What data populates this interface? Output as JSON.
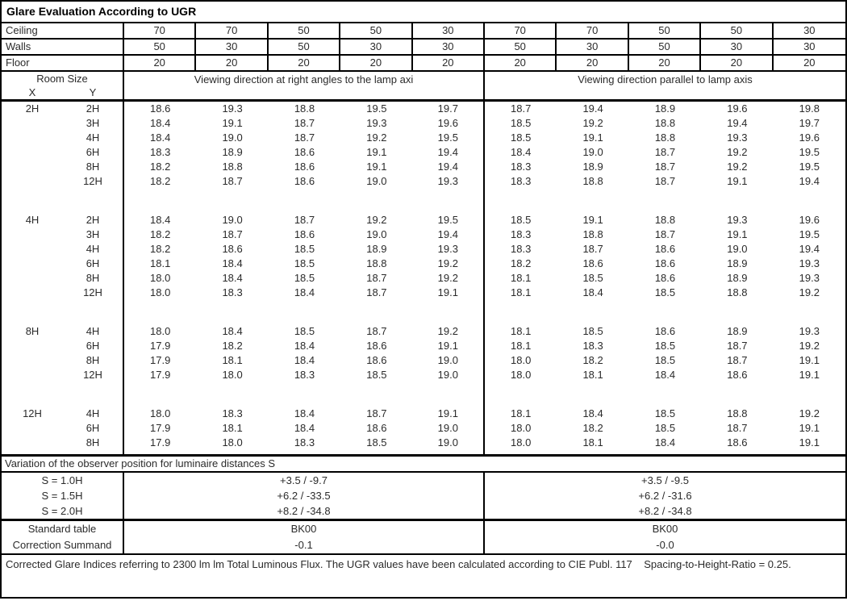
{
  "title": "Glare Evaluation According to UGR",
  "colors": {
    "border": "#000000",
    "text": "#2b2b2b",
    "background": "#ffffff"
  },
  "surface_rows": [
    {
      "label": "Ceiling",
      "values": [
        "70",
        "70",
        "50",
        "50",
        "30",
        "70",
        "70",
        "50",
        "50",
        "30"
      ]
    },
    {
      "label": "Walls",
      "values": [
        "50",
        "30",
        "50",
        "30",
        "30",
        "50",
        "30",
        "50",
        "30",
        "30"
      ]
    },
    {
      "label": "Floor",
      "values": [
        "20",
        "20",
        "20",
        "20",
        "20",
        "20",
        "20",
        "20",
        "20",
        "20"
      ]
    }
  ],
  "header": {
    "room_size": "Room Size",
    "x": "X",
    "y": "Y",
    "left_group": "Viewing direction at right angles to the lamp axi",
    "right_group": "Viewing direction parallel to lamp axis"
  },
  "groups": [
    {
      "x": "2H",
      "rows": [
        {
          "y": "2H",
          "values": [
            "18.6",
            "19.3",
            "18.8",
            "19.5",
            "19.7",
            "18.7",
            "19.4",
            "18.9",
            "19.6",
            "19.8"
          ]
        },
        {
          "y": "3H",
          "values": [
            "18.4",
            "19.1",
            "18.7",
            "19.3",
            "19.6",
            "18.5",
            "19.2",
            "18.8",
            "19.4",
            "19.7"
          ]
        },
        {
          "y": "4H",
          "values": [
            "18.4",
            "19.0",
            "18.7",
            "19.2",
            "19.5",
            "18.5",
            "19.1",
            "18.8",
            "19.3",
            "19.6"
          ]
        },
        {
          "y": "6H",
          "values": [
            "18.3",
            "18.9",
            "18.6",
            "19.1",
            "19.4",
            "18.4",
            "19.0",
            "18.7",
            "19.2",
            "19.5"
          ]
        },
        {
          "y": "8H",
          "values": [
            "18.2",
            "18.8",
            "18.6",
            "19.1",
            "19.4",
            "18.3",
            "18.9",
            "18.7",
            "19.2",
            "19.5"
          ]
        },
        {
          "y": "12H",
          "values": [
            "18.2",
            "18.7",
            "18.6",
            "19.0",
            "19.3",
            "18.3",
            "18.8",
            "18.7",
            "19.1",
            "19.4"
          ]
        }
      ]
    },
    {
      "x": "4H",
      "rows": [
        {
          "y": "2H",
          "values": [
            "18.4",
            "19.0",
            "18.7",
            "19.2",
            "19.5",
            "18.5",
            "19.1",
            "18.8",
            "19.3",
            "19.6"
          ]
        },
        {
          "y": "3H",
          "values": [
            "18.2",
            "18.7",
            "18.6",
            "19.0",
            "19.4",
            "18.3",
            "18.8",
            "18.7",
            "19.1",
            "19.5"
          ]
        },
        {
          "y": "4H",
          "values": [
            "18.2",
            "18.6",
            "18.5",
            "18.9",
            "19.3",
            "18.3",
            "18.7",
            "18.6",
            "19.0",
            "19.4"
          ]
        },
        {
          "y": "6H",
          "values": [
            "18.1",
            "18.4",
            "18.5",
            "18.8",
            "19.2",
            "18.2",
            "18.6",
            "18.6",
            "18.9",
            "19.3"
          ]
        },
        {
          "y": "8H",
          "values": [
            "18.0",
            "18.4",
            "18.5",
            "18.7",
            "19.2",
            "18.1",
            "18.5",
            "18.6",
            "18.9",
            "19.3"
          ]
        },
        {
          "y": "12H",
          "values": [
            "18.0",
            "18.3",
            "18.4",
            "18.7",
            "19.1",
            "18.1",
            "18.4",
            "18.5",
            "18.8",
            "19.2"
          ]
        }
      ]
    },
    {
      "x": "8H",
      "rows": [
        {
          "y": "4H",
          "values": [
            "18.0",
            "18.4",
            "18.5",
            "18.7",
            "19.2",
            "18.1",
            "18.5",
            "18.6",
            "18.9",
            "19.3"
          ]
        },
        {
          "y": "6H",
          "values": [
            "17.9",
            "18.2",
            "18.4",
            "18.6",
            "19.1",
            "18.1",
            "18.3",
            "18.5",
            "18.7",
            "19.2"
          ]
        },
        {
          "y": "8H",
          "values": [
            "17.9",
            "18.1",
            "18.4",
            "18.6",
            "19.0",
            "18.0",
            "18.2",
            "18.5",
            "18.7",
            "19.1"
          ]
        },
        {
          "y": "12H",
          "values": [
            "17.9",
            "18.0",
            "18.3",
            "18.5",
            "19.0",
            "18.0",
            "18.1",
            "18.4",
            "18.6",
            "19.1"
          ]
        }
      ]
    },
    {
      "x": "12H",
      "rows": [
        {
          "y": "4H",
          "values": [
            "18.0",
            "18.3",
            "18.4",
            "18.7",
            "19.1",
            "18.1",
            "18.4",
            "18.5",
            "18.8",
            "19.2"
          ]
        },
        {
          "y": "6H",
          "values": [
            "17.9",
            "18.1",
            "18.4",
            "18.6",
            "19.0",
            "18.0",
            "18.2",
            "18.5",
            "18.7",
            "19.1"
          ]
        },
        {
          "y": "8H",
          "values": [
            "17.9",
            "18.0",
            "18.3",
            "18.5",
            "19.0",
            "18.0",
            "18.1",
            "18.4",
            "18.6",
            "19.1"
          ]
        }
      ]
    }
  ],
  "variation": {
    "label": "Variation of the observer position for luminaire distances S",
    "rows": [
      {
        "label": "S = 1.0H",
        "left": "+3.5 / -9.7",
        "right": "+3.5 / -9.5"
      },
      {
        "label": "S = 1.5H",
        "left": "+6.2 / -33.5",
        "right": "+6.2 / -31.6"
      },
      {
        "label": "S = 2.0H",
        "left": "+8.2 / -34.8",
        "right": "+8.2 / -34.8"
      }
    ]
  },
  "summary": {
    "rows": [
      {
        "label": "Standard table",
        "left": "BK00",
        "right": "BK00"
      },
      {
        "label": "Correction Summand",
        "left": "-0.1",
        "right": "-0.0"
      }
    ]
  },
  "footer": "Corrected Glare Indices referring to 2300 lm lm Total Luminous Flux. The UGR values have been calculated according to CIE Publ. 117    Spacing-to-Height-Ratio = 0.25."
}
